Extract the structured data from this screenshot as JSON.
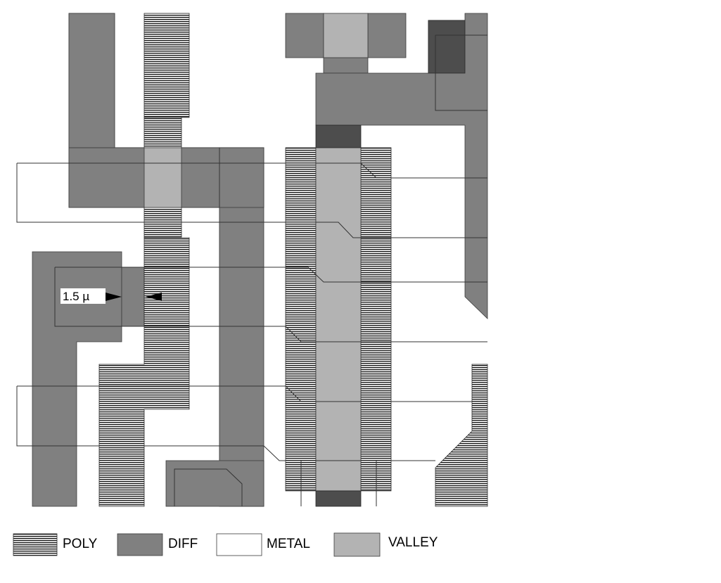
{
  "dimension_label": "1.5 µ",
  "legend": [
    {
      "key": "poly",
      "label": "POLY"
    },
    {
      "key": "diff",
      "label": "DIFF"
    },
    {
      "key": "metal",
      "label": "METAL"
    },
    {
      "key": "valley",
      "label": "VALLEY"
    }
  ],
  "colors": {
    "diff": "#808080",
    "valley": "#b3b3b3",
    "contact": "#4d4d4d",
    "poly_lines": "#000000",
    "metal": "#ffffff"
  }
}
